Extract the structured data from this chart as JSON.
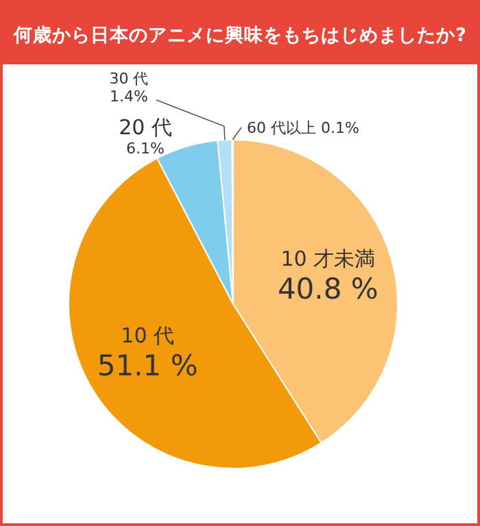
{
  "chart_data": {
    "type": "pie",
    "title": "何歳から日本のアニメに興味をもちはじめましたか?",
    "categories": [
      "10 才未満",
      "10 代",
      "20 代",
      "30 代",
      "60 代以上"
    ],
    "values": [
      40.8,
      51.1,
      6.1,
      1.4,
      0.1
    ],
    "colors": [
      "#fdc374",
      "#f39a0b",
      "#7fcdec",
      "#b5dff3",
      "#d9eef8"
    ],
    "value_labels": [
      "40.8 %",
      "51.1 %",
      "6.1%",
      "1.4%",
      "0.1%"
    ]
  }
}
